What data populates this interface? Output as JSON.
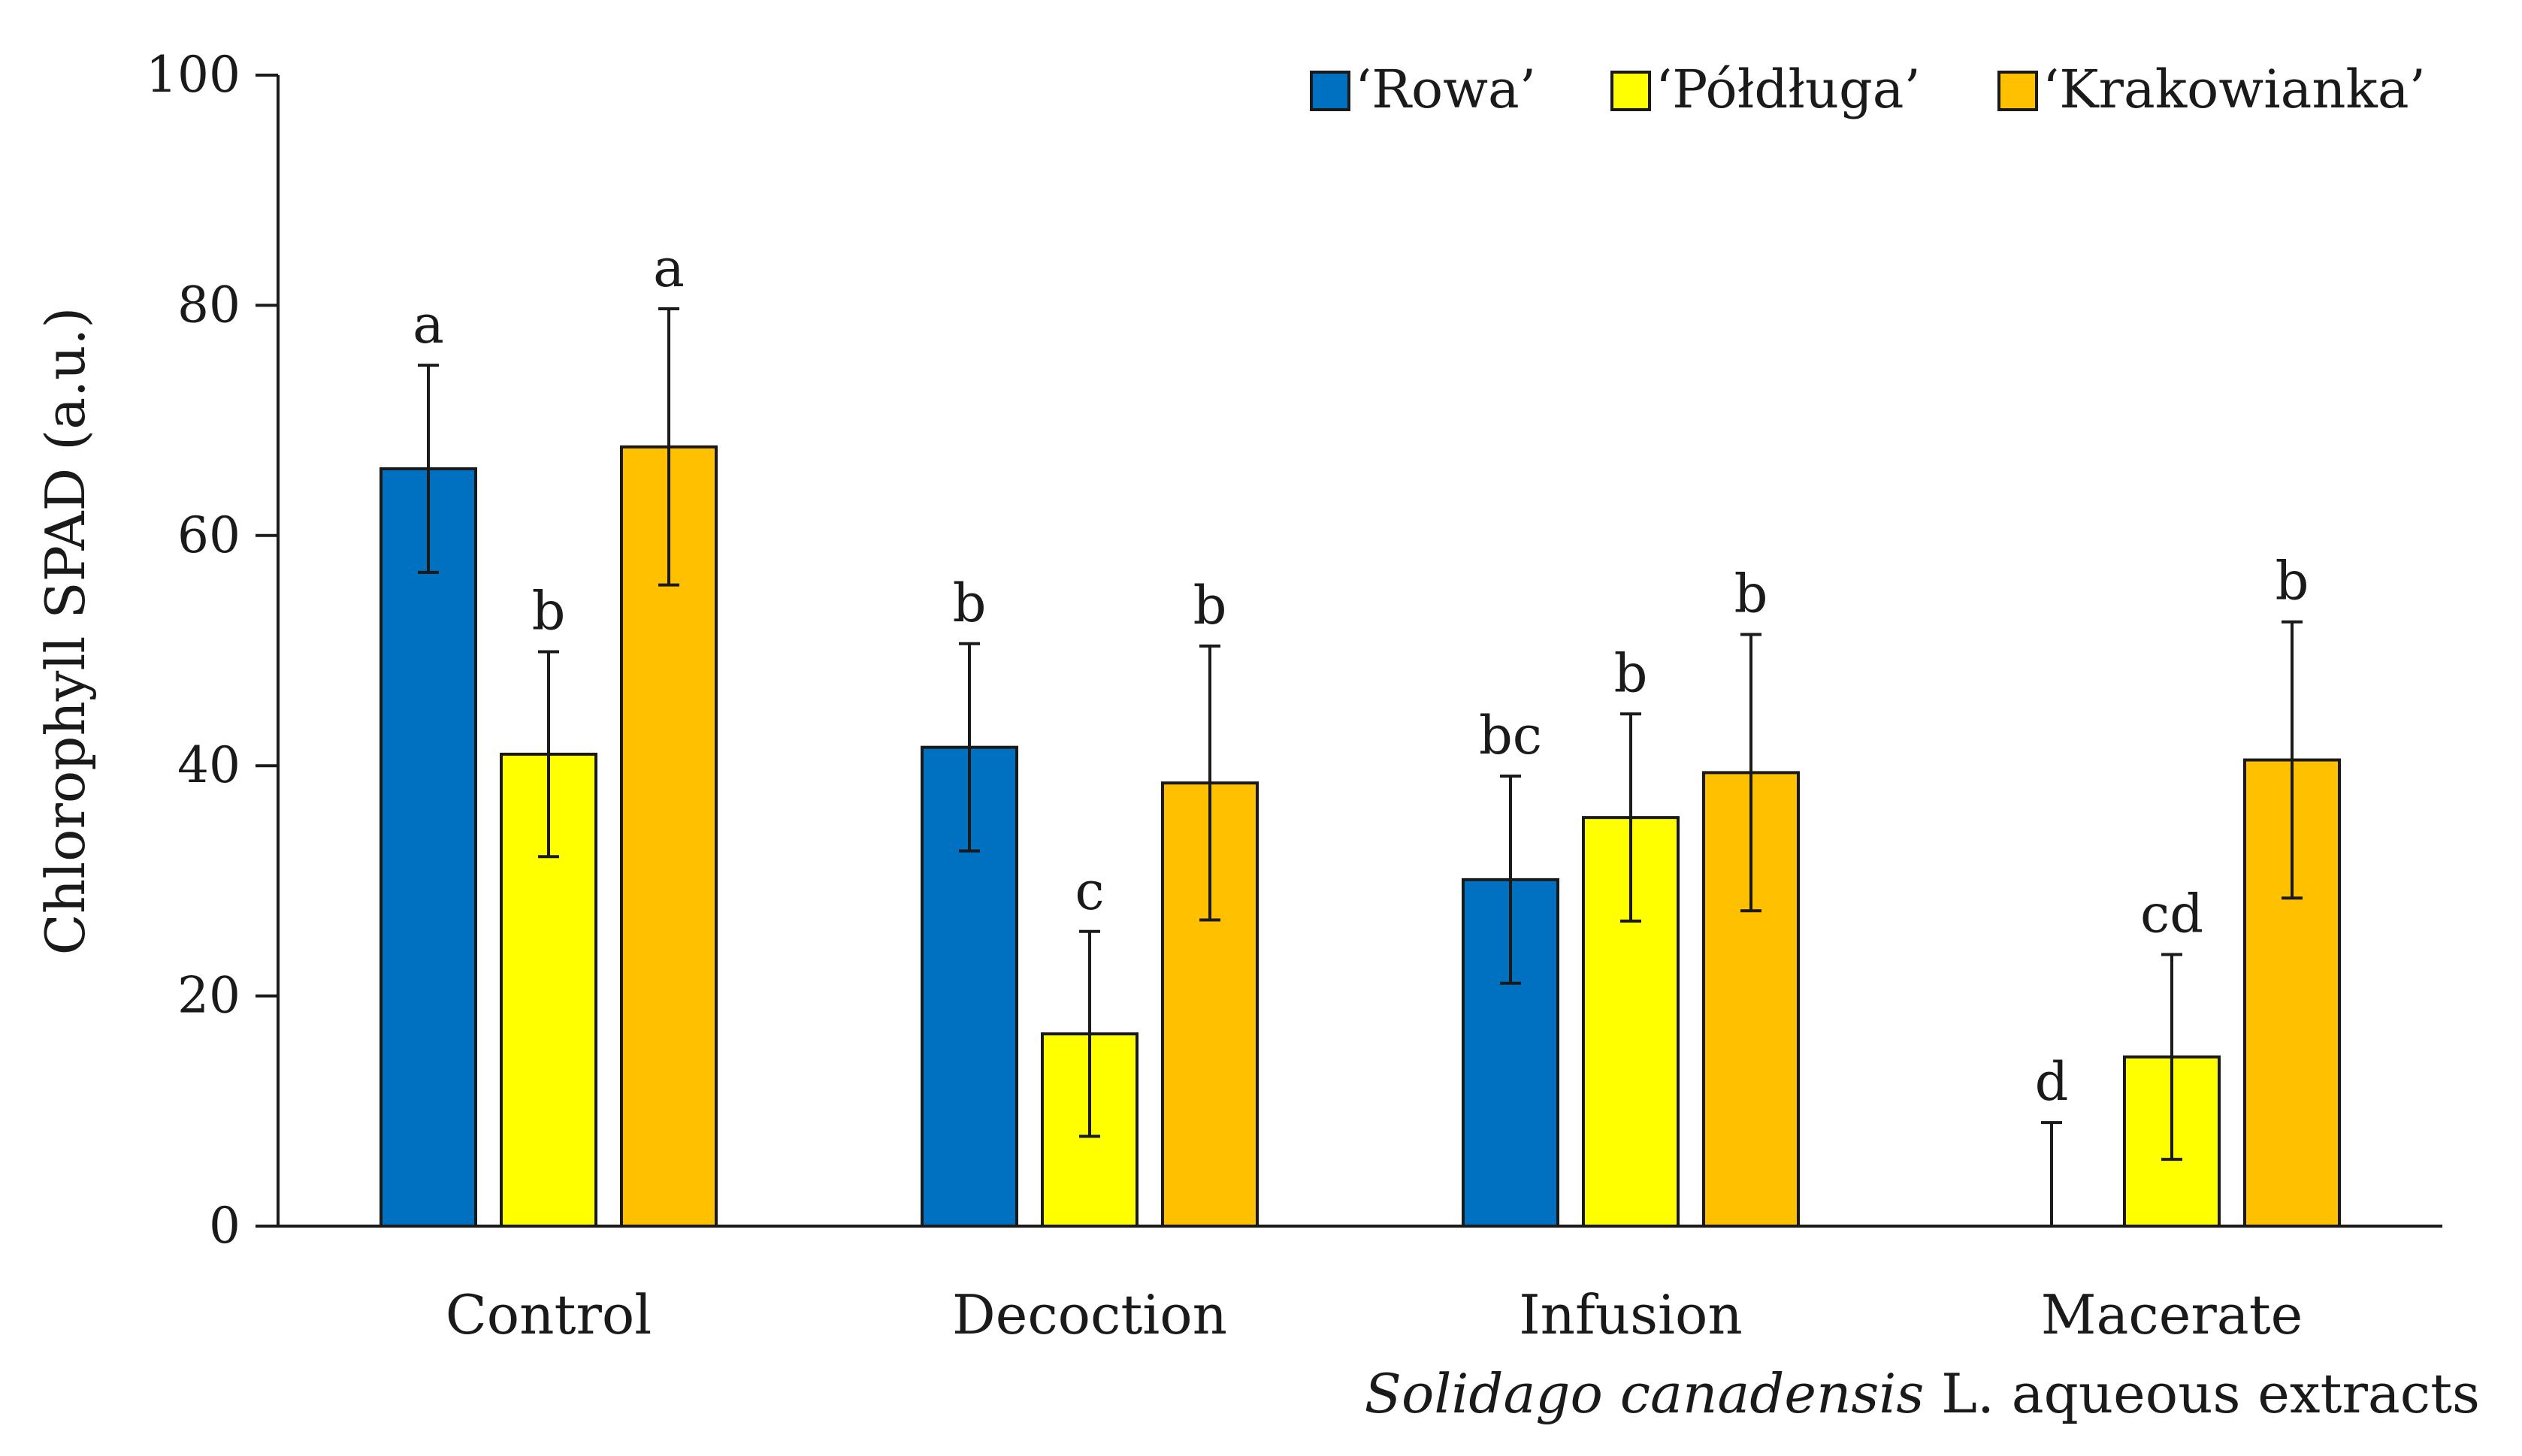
{
  "chart_data": {
    "type": "bar",
    "title": "",
    "xlabel_italic": "Solidago canadensis",
    "xlabel_rest": " L. aqueous extracts",
    "ylabel": "Chlorophyll  SPAD (a.u.)",
    "ylim": [
      0,
      100
    ],
    "yticks": [
      0,
      20,
      40,
      60,
      80,
      100
    ],
    "grid": false,
    "legend_position": "top-right",
    "categories": [
      "Control",
      "Decoction",
      "Infusion",
      "Macerate"
    ],
    "series": [
      {
        "name": "‘Rowa’",
        "color": "#0070C0",
        "values": [
          65.8,
          41.6,
          30.1,
          0
        ],
        "errors": [
          9.0,
          9.0,
          9.0,
          9.0
        ],
        "letters": [
          "a",
          "b",
          "bc",
          "d"
        ]
      },
      {
        "name": "‘Półdługa’",
        "color": "#FFFF00",
        "values": [
          41.0,
          16.7,
          35.5,
          14.7
        ],
        "errors": [
          8.9,
          8.9,
          9.0,
          8.9
        ],
        "letters": [
          "b",
          "c",
          "b",
          "cd"
        ]
      },
      {
        "name": "‘Krakowianka’",
        "color": "#FFC000",
        "values": [
          67.7,
          38.5,
          39.4,
          40.5
        ],
        "errors": [
          12.0,
          11.9,
          12.0,
          12.0
        ],
        "letters": [
          "a",
          "b",
          "b",
          "b"
        ]
      }
    ]
  }
}
